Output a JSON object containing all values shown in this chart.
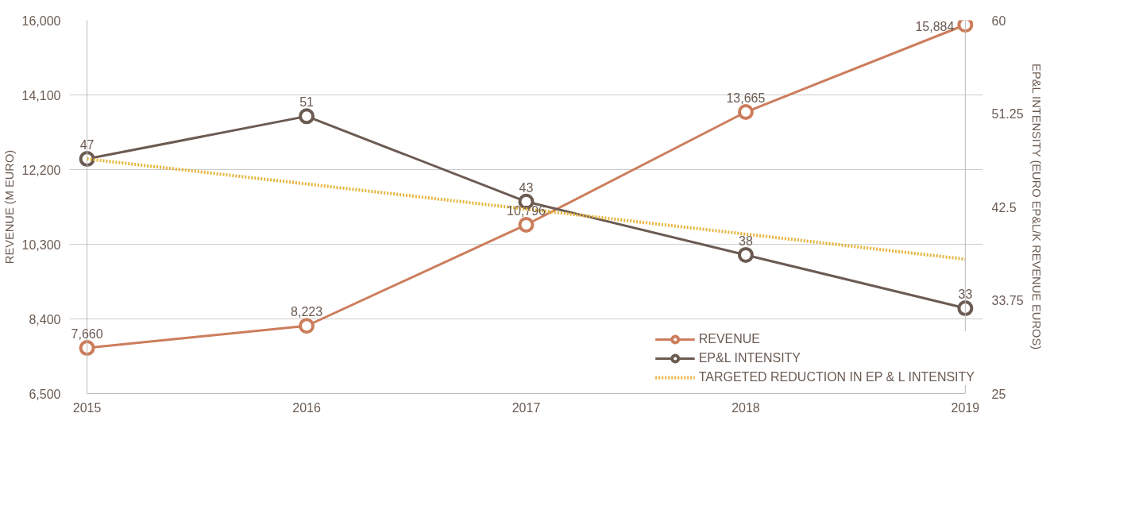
{
  "chart_data": {
    "type": "line",
    "x": [
      2015,
      2016,
      2017,
      2018,
      2019
    ],
    "xlim": [
      2015,
      2019
    ],
    "xticks": [
      2015,
      2016,
      2017,
      2018,
      2019
    ],
    "ylabel": "REVENUE (M EURO)",
    "y2label": "EP&L INTENSITY (EURO EP&L/K REVENUE EUROS)",
    "ylim": [
      6500,
      16000
    ],
    "yticks": [
      {
        "value": 6500,
        "label": "6,500"
      },
      {
        "value": 8400,
        "label": "8,400"
      },
      {
        "value": 10300,
        "label": "10,300"
      },
      {
        "value": 12200,
        "label": "12,200"
      },
      {
        "value": 14100,
        "label": "14,100"
      },
      {
        "value": 16000,
        "label": "16,000"
      }
    ],
    "y2lim": [
      25,
      60
    ],
    "y2ticks": [
      25,
      33.75,
      42.5,
      51.25,
      60
    ],
    "grid": "y",
    "legend": "bottom right",
    "marker": "circle",
    "line_style": "solid",
    "series": [
      {
        "name": "REVENUE",
        "color": "#cc7d5c",
        "values": [
          7660,
          8223,
          10796,
          13665,
          15884
        ],
        "value_labels": [
          "7,660",
          "8,223",
          "10,796",
          "13,665",
          "15,884"
        ]
      },
      {
        "name": "EP&L INTENSITY",
        "color": "#6b5b52",
        "axis": "y2",
        "values": [
          47,
          51,
          43,
          38,
          33
        ],
        "value_labels": [
          "47",
          "51",
          "43",
          "38",
          "33"
        ]
      },
      {
        "name": "TARGETED REDUCTION IN EP & L INTENSITY",
        "color": "#e6b43a",
        "axis": "y2",
        "values": [
          47,
          null,
          null,
          null,
          37.6
        ],
        "x": [
          2015,
          null,
          null,
          null,
          2019
        ],
        "marker": "none",
        "line_style": "dotted"
      }
    ]
  }
}
